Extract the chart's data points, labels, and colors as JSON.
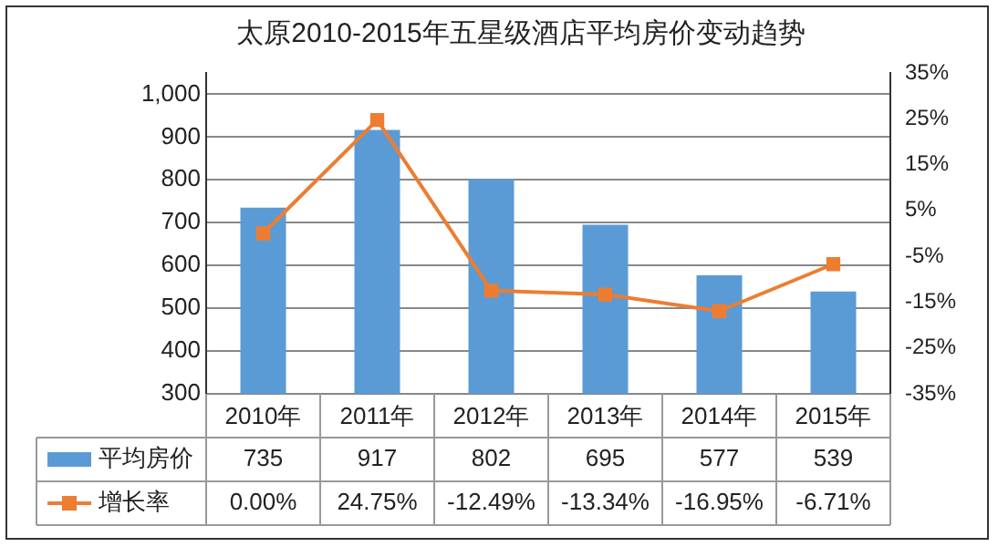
{
  "chart_data": {
    "type": "bar",
    "title": "太原2010-2015年五星级酒店平均房价变动趋势",
    "categories": [
      "2010年",
      "2011年",
      "2012年",
      "2013年",
      "2014年",
      "2015年"
    ],
    "series": [
      {
        "name": "平均房价",
        "color": "#5b9bd5",
        "values": [
          735,
          917,
          802,
          695,
          577,
          539
        ],
        "value_labels": [
          "735",
          "917",
          "802",
          "695",
          "577",
          "539"
        ]
      },
      {
        "name": "增长率",
        "type": "line",
        "axis": "y2",
        "color": "#ed7d31",
        "marker": "square",
        "values": [
          0,
          24.75,
          -12.49,
          -13.34,
          -16.95,
          -6.71
        ],
        "value_labels": [
          "0.00%",
          "24.75%",
          "-12.49%",
          "-13.34%",
          "-16.95%",
          "-6.71%"
        ]
      }
    ],
    "ylim": [
      300,
      1050
    ],
    "yticks": [
      300,
      400,
      500,
      600,
      700,
      800,
      900,
      {
        "value": 1000,
        "label": "1,000"
      }
    ],
    "y2lim": [
      -35,
      35
    ],
    "y2ticks": [
      {
        "value": -35,
        "label": "-35%"
      },
      {
        "value": -25,
        "label": "-25%"
      },
      {
        "value": -15,
        "label": "-15%"
      },
      {
        "value": -5,
        "label": "-5%"
      },
      {
        "value": 5,
        "label": "5%"
      },
      {
        "value": 15,
        "label": "15%"
      },
      {
        "value": 25,
        "label": "25%"
      },
      {
        "value": 35,
        "label": "35%"
      }
    ],
    "grid": "y",
    "legend": "bottom left"
  }
}
